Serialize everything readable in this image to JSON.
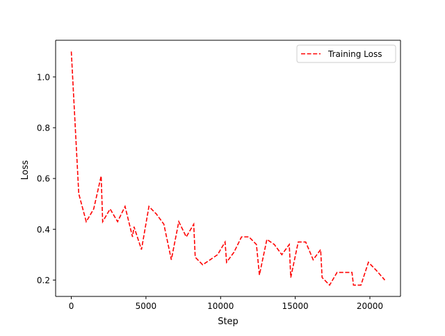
{
  "chart_data": {
    "type": "line",
    "title": "",
    "xlabel": "Step",
    "ylabel": "Loss",
    "xlim": [
      -1050,
      22050
    ],
    "ylim": [
      0.1355,
      1.1445
    ],
    "xticks": [
      0,
      5000,
      10000,
      15000,
      20000
    ],
    "yticks": [
      0.2,
      0.4,
      0.6,
      0.8,
      1.0
    ],
    "grid": false,
    "legend_position": "upper right",
    "series": [
      {
        "name": "Training Loss",
        "color": "#ff0000",
        "linestyle": "dashed",
        "x": [
          0,
          500,
          1000,
          1500,
          2000,
          2100,
          2600,
          3100,
          3600,
          4100,
          4200,
          4700,
          5200,
          5700,
          6200,
          6700,
          7200,
          7700,
          8200,
          8300,
          8800,
          9300,
          9800,
          10300,
          10400,
          10900,
          11400,
          11900,
          12400,
          12600,
          13100,
          13600,
          14100,
          14600,
          14700,
          15200,
          15700,
          16200,
          16700,
          16800,
          17300,
          17800,
          18300,
          18800,
          18900,
          19400,
          19900,
          20400,
          21000
        ],
        "y": [
          1.1,
          0.54,
          0.43,
          0.48,
          0.61,
          0.43,
          0.48,
          0.43,
          0.49,
          0.37,
          0.41,
          0.32,
          0.49,
          0.46,
          0.42,
          0.28,
          0.43,
          0.37,
          0.42,
          0.29,
          0.26,
          0.28,
          0.3,
          0.35,
          0.27,
          0.31,
          0.37,
          0.37,
          0.34,
          0.22,
          0.36,
          0.34,
          0.3,
          0.34,
          0.21,
          0.35,
          0.35,
          0.28,
          0.32,
          0.21,
          0.18,
          0.23,
          0.23,
          0.23,
          0.18,
          0.18,
          0.27,
          0.24,
          0.2
        ]
      }
    ]
  }
}
